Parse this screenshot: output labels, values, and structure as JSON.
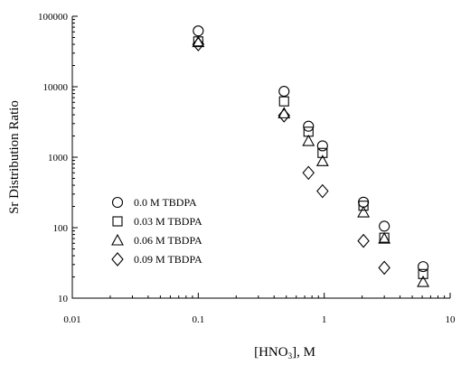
{
  "chart_data": {
    "type": "scatter",
    "xlabel_main": "[HNO",
    "xlabel_sub": "3",
    "xlabel_tail": "], M",
    "ylabel": "Sr Distribution Ratio",
    "xscale": "log",
    "yscale": "log",
    "xlim": [
      0.01,
      10
    ],
    "ylim": [
      10,
      100000
    ],
    "x_ticks": [
      0.01,
      0.1,
      1,
      10
    ],
    "x_tick_labels": [
      "0.01",
      "0.1",
      "1",
      "10"
    ],
    "y_ticks": [
      10,
      100,
      1000,
      10000,
      100000
    ],
    "y_tick_labels": [
      "10",
      "100",
      "1000",
      "10000",
      "100000"
    ],
    "grid": false,
    "legend_position": "bottom-left",
    "series": [
      {
        "name": "0.0 M TBDPA",
        "marker": "circle",
        "x": [
          0.1,
          0.48,
          0.75,
          0.97,
          2.05,
          3.0,
          6.1
        ],
        "y": [
          62000,
          8600,
          2750,
          1450,
          230,
          105,
          28
        ]
      },
      {
        "name": "0.03 M TBDPA",
        "marker": "square",
        "x": [
          0.1,
          0.48,
          0.75,
          0.97,
          2.05,
          3.0,
          6.1
        ],
        "y": [
          44000,
          6200,
          2300,
          1150,
          205,
          72,
          22
        ]
      },
      {
        "name": "0.06 M TBDPA",
        "marker": "triangle",
        "x": [
          0.1,
          0.48,
          0.75,
          0.97,
          2.05,
          3.0,
          6.1
        ],
        "y": [
          43000,
          4200,
          1700,
          880,
          165,
          70,
          17
        ]
      },
      {
        "name": "0.09 M TBDPA",
        "marker": "diamond",
        "x": [
          0.1,
          0.48,
          0.75,
          0.97,
          2.05,
          3.0
        ],
        "y": [
          40000,
          3900,
          600,
          330,
          65,
          27
        ]
      }
    ]
  }
}
